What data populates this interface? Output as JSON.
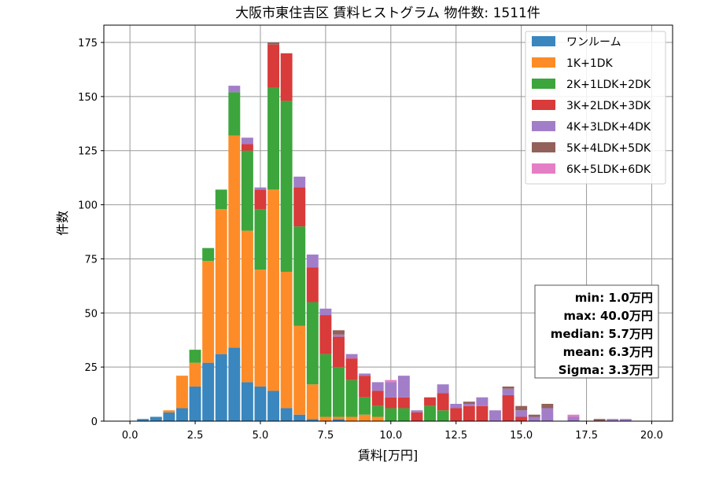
{
  "chart_data": {
    "type": "bar",
    "stacked": true,
    "title": "大阪市東住吉区 賃料ヒストグラム  物件数: 1511件",
    "xlabel": "賃料[万円]",
    "ylabel": "件数",
    "xlim": [
      -1.0,
      20.8
    ],
    "ylim": [
      0,
      183
    ],
    "bin_width": 0.5,
    "xticks": [
      0.0,
      2.5,
      5.0,
      7.5,
      10.0,
      12.5,
      15.0,
      17.5,
      20.0
    ],
    "xtick_labels": [
      "0.0",
      "2.5",
      "5.0",
      "7.5",
      "10.0",
      "12.5",
      "15.0",
      "17.5",
      "20.0"
    ],
    "yticks": [
      0,
      25,
      50,
      75,
      100,
      125,
      150,
      175
    ],
    "ytick_labels": [
      "0",
      "25",
      "50",
      "75",
      "100",
      "125",
      "150",
      "175"
    ],
    "grid": true,
    "legend_position": "top-right",
    "bins": [
      0.0,
      0.5,
      1.0,
      1.5,
      2.0,
      2.5,
      3.0,
      3.5,
      4.0,
      4.5,
      5.0,
      5.5,
      6.0,
      6.5,
      7.0,
      7.5,
      8.0,
      8.5,
      9.0,
      9.5,
      10.0,
      10.5,
      11.0,
      11.5,
      12.0,
      12.5,
      13.0,
      13.5,
      14.0,
      14.5,
      15.0,
      15.5,
      16.0,
      16.5,
      17.0,
      17.5,
      18.0,
      18.5,
      19.0,
      19.5
    ],
    "series": [
      {
        "name": "ワンルーム",
        "color": "#3a86be",
        "values": [
          0,
          1,
          2,
          4,
          6,
          16,
          27,
          31,
          34,
          18,
          16,
          14,
          6,
          3,
          1,
          0,
          1,
          0,
          0,
          0,
          0,
          0,
          0,
          0,
          0,
          0,
          0,
          0,
          0,
          0,
          0,
          0,
          0,
          0,
          0,
          0,
          0,
          0,
          0,
          0
        ]
      },
      {
        "name": "1K+1DK",
        "color": "#fd8c28",
        "values": [
          0,
          0,
          0,
          1,
          15,
          11,
          47,
          67,
          98,
          70,
          54,
          93,
          63,
          41,
          16,
          2,
          1,
          2,
          3,
          2,
          0,
          0,
          0,
          0,
          0,
          0,
          0,
          0,
          0,
          0,
          0,
          0,
          0,
          0,
          0,
          0,
          0,
          0,
          0,
          0
        ]
      },
      {
        "name": "2K+1LDK+2DK",
        "color": "#3ca53c",
        "values": [
          0,
          0,
          0,
          0,
          0,
          6,
          6,
          9,
          20,
          37,
          28,
          47,
          79,
          46,
          38,
          29,
          23,
          17,
          8,
          5,
          6,
          6,
          0,
          7,
          5,
          0,
          0,
          0,
          0,
          0,
          0,
          0,
          0,
          0,
          0,
          0,
          0,
          0,
          0,
          0
        ]
      },
      {
        "name": "3K+2LDK+3DK",
        "color": "#d93a3a",
        "values": [
          0,
          0,
          0,
          0,
          0,
          0,
          0,
          0,
          0,
          3,
          9,
          20,
          22,
          18,
          16,
          18,
          14,
          10,
          10,
          7,
          5,
          5,
          4,
          4,
          8,
          6,
          7,
          7,
          0,
          12,
          2,
          0,
          0,
          0,
          0,
          0,
          0,
          0,
          0,
          0
        ]
      },
      {
        "name": "4K+3LDK+4DK",
        "color": "#a27ec9",
        "values": [
          0,
          0,
          0,
          0,
          0,
          0,
          0,
          0,
          3,
          3,
          1,
          0,
          0,
          5,
          6,
          3,
          1,
          2,
          1,
          4,
          7,
          10,
          1,
          0,
          4,
          2,
          1,
          4,
          5,
          3,
          3,
          2,
          6,
          0,
          2,
          0,
          0,
          1,
          1,
          0
        ]
      },
      {
        "name": "5K+4LDK+5DK",
        "color": "#926159",
        "values": [
          0,
          0,
          0,
          0,
          0,
          0,
          0,
          0,
          0,
          0,
          0,
          1,
          0,
          0,
          0,
          0,
          2,
          0,
          0,
          0,
          0,
          0,
          0,
          0,
          0,
          0,
          1,
          0,
          0,
          1,
          2,
          1,
          2,
          0,
          0,
          0,
          1,
          0,
          0,
          0
        ]
      },
      {
        "name": "6K+5LDK+6DK",
        "color": "#e57fc5",
        "values": [
          0,
          0,
          0,
          0,
          0,
          0,
          0,
          0,
          0,
          0,
          0,
          0,
          0,
          0,
          0,
          0,
          0,
          0,
          0,
          0,
          1,
          0,
          0,
          0,
          0,
          0,
          0,
          0,
          0,
          0,
          0,
          0,
          0,
          0,
          1,
          0,
          0,
          0,
          0,
          0
        ]
      }
    ],
    "stats": [
      "min: 1.0万円",
      "max: 40.0万円",
      "median: 5.7万円",
      "mean: 6.3万円",
      "Sigma: 3.3万円"
    ]
  }
}
